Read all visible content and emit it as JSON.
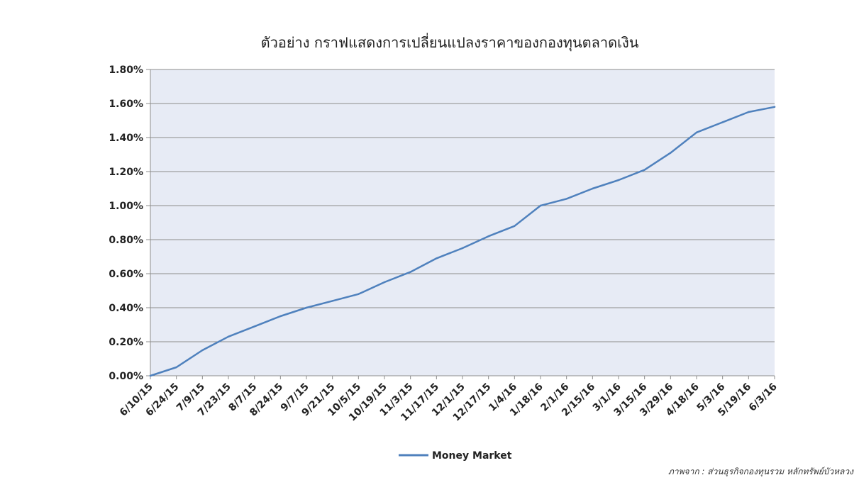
{
  "chart_data": {
    "type": "line",
    "title": "ตัวอย่าง กราฟแสดงการเปลี่ยนแปลงราคาของกองทุนตลาดเงิน",
    "xlabel": "",
    "ylabel": "",
    "ylim": [
      0,
      1.8
    ],
    "y_ticks": [
      "0.00%",
      "0.20%",
      "0.40%",
      "0.60%",
      "0.80%",
      "1.00%",
      "1.20%",
      "1.40%",
      "1.60%",
      "1.80%"
    ],
    "y_tick_values": [
      0,
      0.2,
      0.4,
      0.6,
      0.8,
      1.0,
      1.2,
      1.4,
      1.6,
      1.8
    ],
    "x_ticks": [
      "6/10/15",
      "6/24/15",
      "7/9/15",
      "7/23/15",
      "8/7/15",
      "8/24/15",
      "9/7/15",
      "9/21/15",
      "10/5/15",
      "10/19/15",
      "11/3/15",
      "11/17/15",
      "12/1/15",
      "12/17/15",
      "1/4/16",
      "1/18/16",
      "2/1/16",
      "2/15/16",
      "3/1/16",
      "3/15/16",
      "3/29/16",
      "4/18/16",
      "5/3/16",
      "5/19/16",
      "6/3/16"
    ],
    "grid": true,
    "legend_position": "bottom",
    "series": [
      {
        "name": "Money Market",
        "color": "#4f81bd",
        "x": [
          "6/10/15",
          "6/24/15",
          "7/9/15",
          "7/23/15",
          "8/7/15",
          "8/24/15",
          "9/7/15",
          "9/21/15",
          "10/5/15",
          "10/19/15",
          "11/3/15",
          "11/17/15",
          "12/1/15",
          "12/17/15",
          "1/4/16",
          "1/18/16",
          "2/1/16",
          "2/15/16",
          "3/1/16",
          "3/15/16",
          "3/29/16",
          "4/18/16",
          "5/3/16",
          "5/19/16",
          "6/3/16"
        ],
        "values": [
          0.0,
          0.05,
          0.15,
          0.23,
          0.29,
          0.35,
          0.4,
          0.44,
          0.48,
          0.55,
          0.61,
          0.69,
          0.75,
          0.82,
          0.88,
          1.0,
          1.04,
          1.1,
          1.15,
          1.21,
          1.31,
          1.43,
          1.49,
          1.55,
          1.58
        ]
      }
    ]
  },
  "source_note": "ภาพจาก : ส่วนธุรกิจกองทุนรวม หลักทรัพย์บัวหลวง"
}
